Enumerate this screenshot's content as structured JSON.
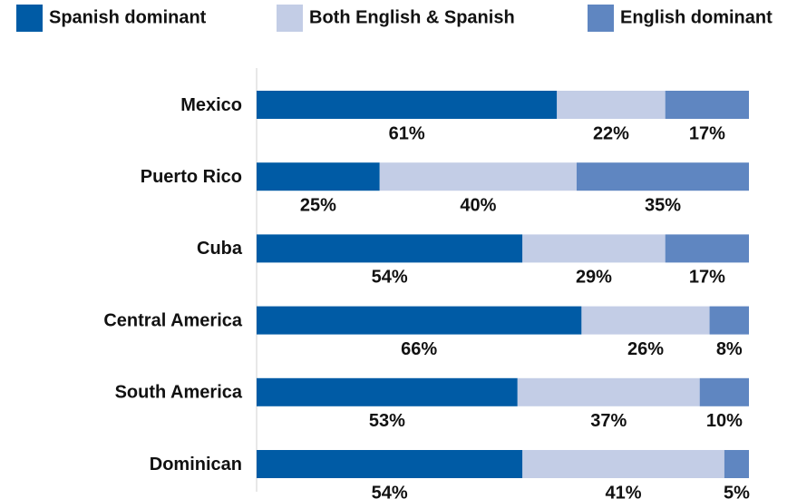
{
  "chart_data": {
    "type": "stacked-bar-horizontal",
    "categories": [
      "Mexico",
      "Puerto Rico",
      "Cuba",
      "Central America",
      "South America",
      "Dominican"
    ],
    "series": [
      {
        "name": "Spanish dominant",
        "color": "#005ba5",
        "values": [
          61,
          25,
          54,
          66,
          53,
          54
        ],
        "value_labels": [
          "61%",
          "25%",
          "54%",
          "66%",
          "53%",
          "54%"
        ]
      },
      {
        "name": "Both English & Spanish",
        "color": "#c3cde6",
        "values": [
          22,
          40,
          29,
          26,
          37,
          41
        ],
        "value_labels": [
          "22%",
          "40%",
          "29%",
          "26%",
          "37%",
          "41%"
        ]
      },
      {
        "name": "English dominant",
        "color": "#5f86c1",
        "values": [
          17,
          35,
          17,
          8,
          10,
          5
        ],
        "value_labels": [
          "17%",
          "35%",
          "17%",
          "8%",
          "10%",
          "5%"
        ]
      }
    ],
    "xlim": [
      0,
      100
    ]
  }
}
